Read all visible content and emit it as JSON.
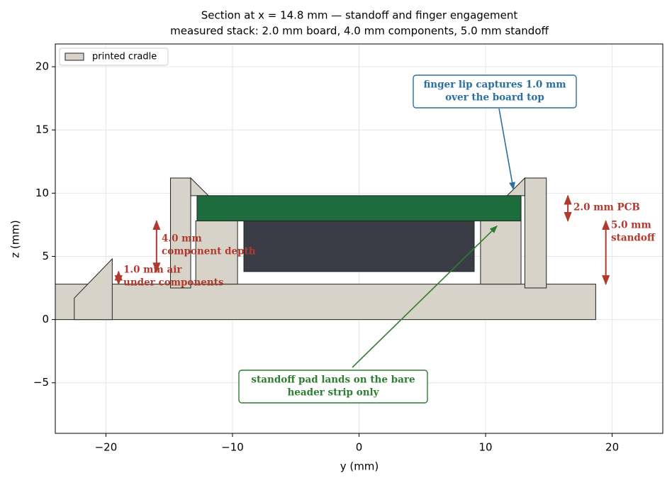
{
  "chart_data": {
    "type": "section",
    "title": "Section at x = 14.8 mm — standoff and finger engagement",
    "subtitle": "measured stack: 2.0 mm board, 4.0 mm components, 5.0 mm standoff",
    "xlabel": "y (mm)",
    "ylabel": "z (mm)",
    "xlim": [
      -24,
      24
    ],
    "ylim": [
      -9,
      21.8
    ],
    "xticks": [
      {
        "value": -20,
        "label": "−20"
      },
      {
        "value": -10,
        "label": "−10"
      },
      0,
      10,
      20
    ],
    "yticks": [
      {
        "value": -5,
        "label": "−5"
      },
      0,
      5,
      10,
      15,
      20
    ],
    "grid": true,
    "legend": "upper left",
    "shapes": [
      {
        "name": "printed cradle",
        "color": "#d8d3c8",
        "parts": [
          [
            [
              -24,
              0
            ],
            [
              18.7,
              0
            ],
            [
              18.7,
              2.8
            ],
            [
              -24,
              2.8
            ]
          ],
          [
            [
              -22.5,
              0
            ],
            [
              -19.5,
              0
            ],
            [
              -19.5,
              4.8
            ],
            [
              -22.5,
              1.7
            ]
          ],
          [
            [
              -14.9,
              2.5
            ],
            [
              -13.3,
              2.5
            ],
            [
              -13.3,
              11.2
            ],
            [
              -14.9,
              11.2
            ]
          ],
          [
            [
              -13.3,
              11.2
            ],
            [
              -11.9,
              9.8
            ],
            [
              -13.3,
              9.8
            ]
          ],
          [
            [
              -12.9,
              2.8
            ],
            [
              -9.6,
              2.8
            ],
            [
              -9.6,
              7.8
            ],
            [
              -12.9,
              7.8
            ]
          ],
          [
            [
              9.6,
              2.8
            ],
            [
              12.8,
              2.8
            ],
            [
              12.8,
              7.8
            ],
            [
              9.6,
              7.8
            ]
          ],
          [
            [
              13.1,
              2.5
            ],
            [
              14.8,
              2.5
            ],
            [
              14.8,
              11.2
            ],
            [
              13.1,
              11.2
            ]
          ],
          [
            [
              13.1,
              11.2
            ],
            [
              11.7,
              9.8
            ],
            [
              13.1,
              9.8
            ]
          ]
        ]
      },
      {
        "color": "#1e6b3e",
        "parts": [
          [
            [
              -12.8,
              7.8
            ],
            [
              12.8,
              7.8
            ],
            [
              12.8,
              9.8
            ],
            [
              -12.8,
              9.8
            ]
          ]
        ]
      },
      {
        "color": "#3a3d45",
        "parts": [
          [
            [
              -9.1,
              3.8
            ],
            [
              9.1,
              3.8
            ],
            [
              9.1,
              7.8
            ],
            [
              -9.1,
              7.8
            ]
          ]
        ]
      }
    ],
    "dimension_color": "#b03a2e",
    "dimensions": [
      {
        "lines": [
          "4.0 mm",
          "component depth"
        ],
        "x": -16,
        "from": 3.8,
        "to": 7.8
      },
      {
        "lines": [
          "1.0 mm air",
          "under components"
        ],
        "x": -19,
        "from": 2.8,
        "to": 3.8
      },
      {
        "lines": [
          "2.0 mm PCB"
        ],
        "x": 16.5,
        "from": 7.8,
        "to": 9.8
      },
      {
        "lines": [
          "5.0 mm",
          "standoff"
        ],
        "x": 19.5,
        "from": 2.8,
        "to": 7.8
      }
    ],
    "callouts": [
      {
        "lines": [
          "finger lip captures 1.0 mm",
          "over the board top"
        ],
        "target": [
          12.2,
          10.3
        ],
        "color": "#2a6f9f"
      },
      {
        "lines": [
          "standoff pad lands on the bare",
          "header strip only"
        ],
        "target": [
          10.9,
          7.4
        ],
        "color": "#2e7d32"
      }
    ]
  }
}
